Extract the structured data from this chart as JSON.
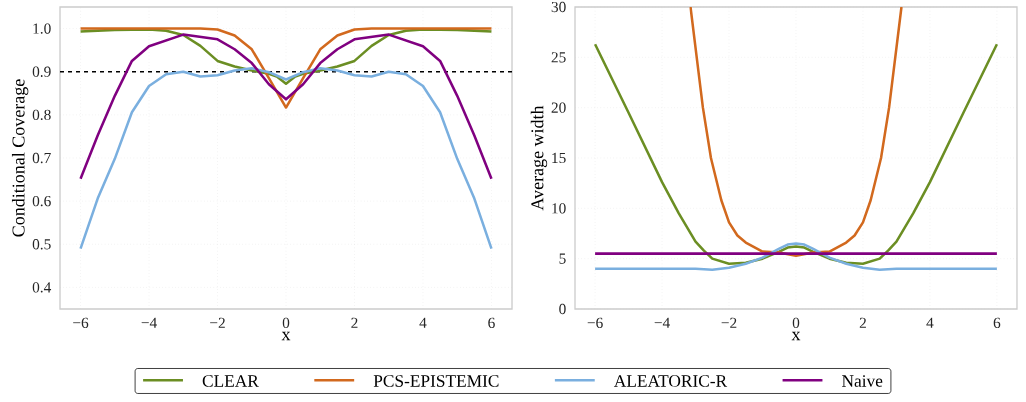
{
  "chart_data": [
    {
      "type": "line",
      "ylabel": "Conditional Coverage",
      "xlabel": "x",
      "xlim": [
        -6.6,
        6.6
      ],
      "ylim": [
        0.35,
        1.05
      ],
      "xticks": [
        {
          "value": -6,
          "label": "−6"
        },
        {
          "value": -4,
          "label": "−4"
        },
        {
          "value": -2,
          "label": "−2"
        },
        0,
        2,
        4,
        6
      ],
      "yticks": [
        {
          "value": 0.4,
          "label": "0.4"
        },
        {
          "value": 0.5,
          "label": "0.5"
        },
        {
          "value": 0.6,
          "label": "0.6"
        },
        {
          "value": 0.7,
          "label": "0.7"
        },
        {
          "value": 0.8,
          "label": "0.8"
        },
        {
          "value": 0.9,
          "label": "0.9"
        },
        {
          "value": 1.0,
          "label": "1.0"
        }
      ],
      "grid": true,
      "legend": "bottom",
      "line_style": "solid",
      "ref_lines": [
        {
          "axis": "y",
          "value": 0.9,
          "color": "#000000",
          "line_style": "dashed"
        }
      ],
      "series": [
        {
          "name": "CLEAR",
          "color": "#6b8e23",
          "x": [
            -6,
            -5,
            -4,
            -3.5,
            -3,
            -2.5,
            -2,
            -1.5,
            -1,
            -0.5,
            -0.25,
            0,
            0.25,
            0.5,
            1,
            1.5,
            2,
            2.5,
            3,
            3.5,
            4,
            5,
            6
          ],
          "values": [
            0.993,
            0.997,
            0.998,
            0.995,
            0.985,
            0.96,
            0.925,
            0.912,
            0.903,
            0.895,
            0.888,
            0.872,
            0.888,
            0.895,
            0.903,
            0.912,
            0.925,
            0.96,
            0.985,
            0.995,
            0.998,
            0.997,
            0.993
          ]
        },
        {
          "name": "PCS-EPISTEMIC",
          "color": "#d2691e",
          "x": [
            -6,
            -2.5,
            -2,
            -1.5,
            -1,
            -0.5,
            0,
            0.5,
            1,
            1.5,
            2,
            2.5,
            6
          ],
          "values": [
            1.0,
            1.0,
            0.998,
            0.984,
            0.952,
            0.885,
            0.817,
            0.885,
            0.952,
            0.984,
            0.998,
            1.0,
            1.0
          ]
        },
        {
          "name": "ALEATORIC-R",
          "color": "#7aafdf",
          "x": [
            -6,
            -5.5,
            -5,
            -4.5,
            -4,
            -3.5,
            -3,
            -2.5,
            -2,
            -1.5,
            -1,
            -0.5,
            0,
            0.5,
            1,
            1.5,
            2,
            2.5,
            3,
            3.5,
            4,
            4.5,
            5,
            5.5,
            6
          ],
          "values": [
            0.49,
            0.606,
            0.698,
            0.806,
            0.867,
            0.894,
            0.9,
            0.889,
            0.892,
            0.903,
            0.908,
            0.899,
            0.882,
            0.899,
            0.908,
            0.903,
            0.892,
            0.889,
            0.9,
            0.894,
            0.867,
            0.806,
            0.698,
            0.606,
            0.49
          ]
        },
        {
          "name": "Naive",
          "color": "#800080",
          "x": [
            -6,
            -5.5,
            -5,
            -4.5,
            -4,
            -3,
            -2,
            -1.5,
            -1,
            -0.5,
            0,
            0.5,
            1,
            1.5,
            2,
            3,
            4,
            4.5,
            5,
            5.5,
            6
          ],
          "values": [
            0.652,
            0.752,
            0.844,
            0.925,
            0.959,
            0.986,
            0.975,
            0.952,
            0.92,
            0.871,
            0.836,
            0.871,
            0.92,
            0.952,
            0.975,
            0.986,
            0.959,
            0.925,
            0.844,
            0.752,
            0.652
          ]
        }
      ]
    },
    {
      "type": "line",
      "ylabel": "Average width",
      "xlabel": "x",
      "xlim": [
        -6.6,
        6.6
      ],
      "ylim": [
        0,
        30
      ],
      "xticks": [
        {
          "value": -6,
          "label": "−6"
        },
        {
          "value": -4,
          "label": "−4"
        },
        {
          "value": -2,
          "label": "−2"
        },
        0,
        2,
        4,
        6
      ],
      "yticks": [
        0,
        5,
        10,
        15,
        20,
        25,
        30
      ],
      "grid": true,
      "line_style": "solid",
      "series": [
        {
          "color": "#6b8e23",
          "x": [
            -6,
            -5,
            -4,
            -3.5,
            -3,
            -2.75,
            -2.5,
            -2,
            -1.5,
            -1,
            -0.5,
            -0.25,
            0,
            0.25,
            0.5,
            1,
            1.5,
            2,
            2.5,
            2.75,
            3,
            3.5,
            4,
            5,
            6
          ],
          "values": [
            26.3,
            19.5,
            12.6,
            9.5,
            6.7,
            5.8,
            5.0,
            4.5,
            4.6,
            5.0,
            5.7,
            6.1,
            6.2,
            6.1,
            5.7,
            5.0,
            4.6,
            4.5,
            5.0,
            5.8,
            6.7,
            9.5,
            12.6,
            19.5,
            26.3
          ]
        },
        {
          "color": "#d2691e",
          "x": [
            -3.15,
            -2.78,
            -2.54,
            -2.23,
            -2,
            -1.75,
            -1.5,
            -1,
            -0.5,
            0,
            0.5,
            1,
            1.5,
            1.75,
            2,
            2.23,
            2.54,
            2.78,
            3.15
          ],
          "values": [
            30,
            20,
            15,
            10.8,
            8.6,
            7.3,
            6.6,
            5.7,
            5.6,
            5.3,
            5.6,
            5.7,
            6.6,
            7.3,
            8.6,
            10.8,
            15,
            20,
            30
          ]
        },
        {
          "color": "#7aafdf",
          "x": [
            -6,
            -3,
            -2.5,
            -2,
            -1.5,
            -1,
            -0.5,
            -0.25,
            0,
            0.25,
            0.5,
            1,
            1.5,
            2,
            2.5,
            3,
            6
          ],
          "values": [
            4.0,
            4.0,
            3.9,
            4.1,
            4.5,
            5.1,
            6.0,
            6.4,
            6.5,
            6.4,
            6.0,
            5.1,
            4.5,
            4.1,
            3.9,
            4.0,
            4.0
          ]
        },
        {
          "color": "#800080",
          "x": [
            -6,
            6
          ],
          "values": [
            5.5,
            5.5
          ]
        }
      ]
    }
  ]
}
